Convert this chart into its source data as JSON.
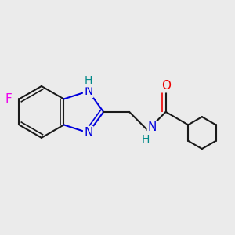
{
  "background_color": "#ebebeb",
  "bond_color": "#1a1a1a",
  "bond_width": 1.5,
  "atom_colors": {
    "N": "#0000dd",
    "O": "#ee0000",
    "F": "#ee00ee",
    "H_teal": "#008888",
    "C": "#1a1a1a"
  },
  "font_size": 11,
  "font_size_H": 10
}
